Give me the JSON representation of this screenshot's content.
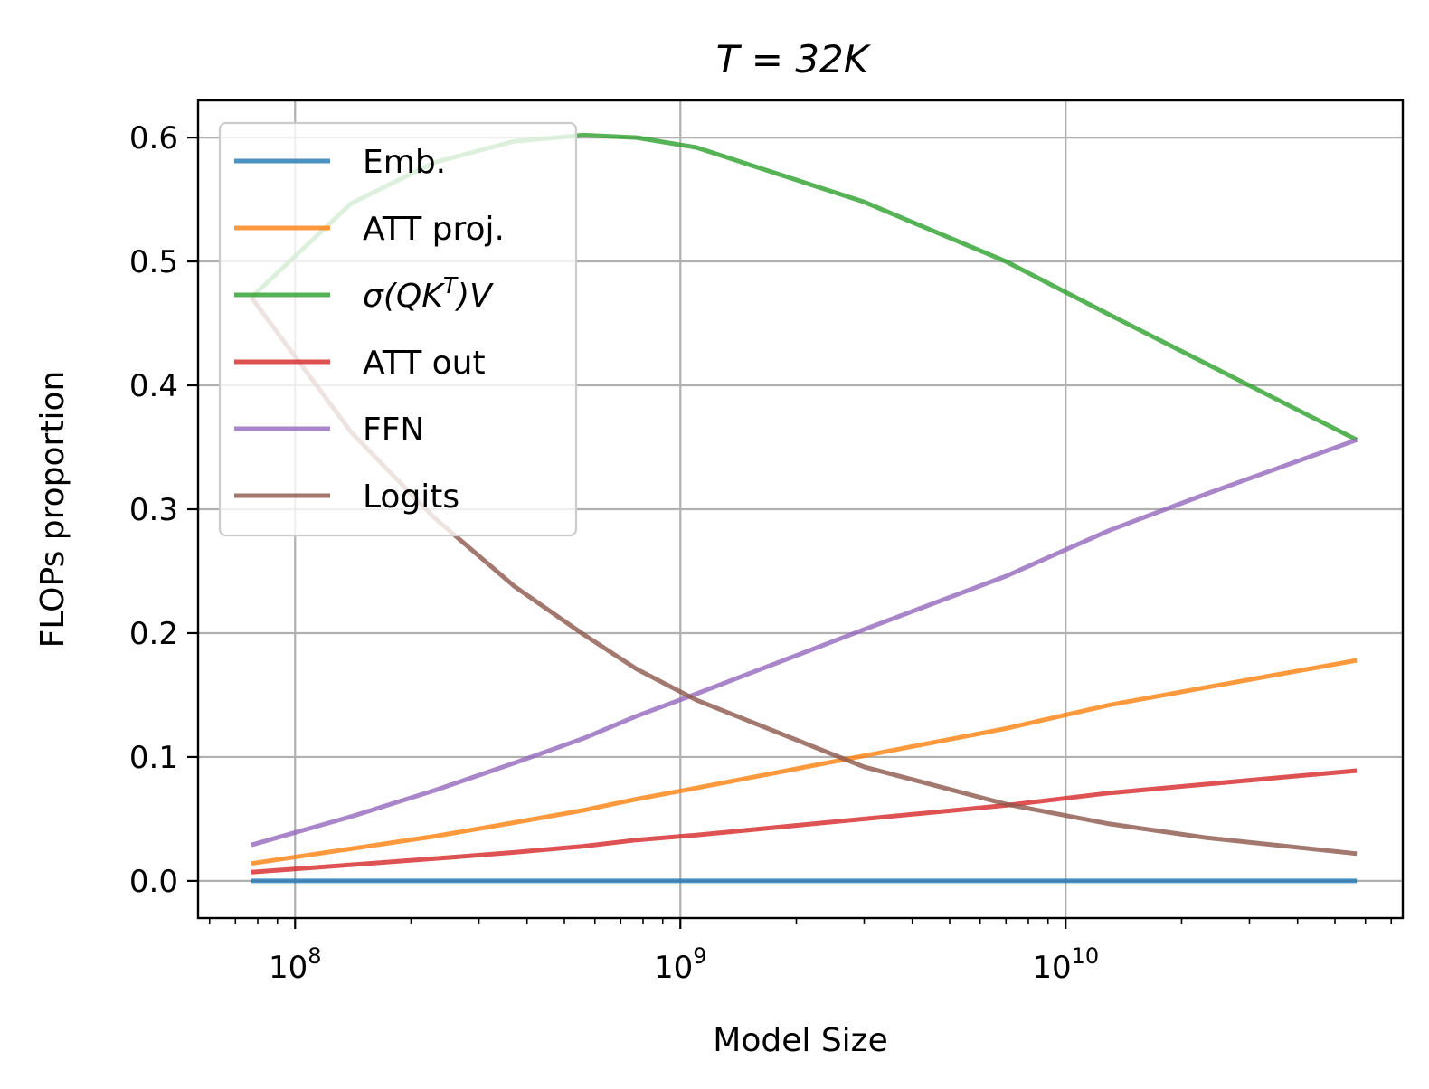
{
  "chart_data": {
    "type": "line",
    "title": "T = 32K",
    "xlabel": "Model Size",
    "ylabel": "FLOPs proportion",
    "x_scale": "log",
    "xlim": [
      56000000,
      75000000000
    ],
    "ylim": [
      -0.03,
      0.63
    ],
    "x_ticks": [
      100000000,
      1000000000,
      10000000000
    ],
    "x_tick_labels": [
      {
        "base": "10",
        "exp": "8"
      },
      {
        "base": "10",
        "exp": "9"
      },
      {
        "base": "10",
        "exp": "10"
      }
    ],
    "y_ticks": [
      0.0,
      0.1,
      0.2,
      0.3,
      0.4,
      0.5,
      0.6
    ],
    "y_tick_labels": [
      "0.0",
      "0.1",
      "0.2",
      "0.3",
      "0.4",
      "0.5",
      "0.6"
    ],
    "grid": true,
    "legend": {
      "position": "top-left"
    },
    "series": [
      {
        "name": "Emb.",
        "color": "#1f77b4",
        "x": [
          77000000,
          1000000000,
          10000000000,
          57000000000
        ],
        "y": [
          0.0,
          0.0,
          0.0,
          0.0
        ]
      },
      {
        "name": "ATT proj.",
        "color": "#ff7f0e",
        "x": [
          77000000,
          140000000,
          230000000,
          370000000,
          560000000,
          770000000,
          1100000000,
          3000000000,
          7000000000,
          13000000000,
          23000000000,
          57000000000
        ],
        "y": [
          0.014,
          0.026,
          0.036,
          0.047,
          0.057,
          0.066,
          0.075,
          0.101,
          0.123,
          0.142,
          0.156,
          0.178
        ]
      },
      {
        "name": "σ(QKᵀ)V",
        "name_parts": {
          "pre": "σ(",
          "q": "QK",
          "sup": "T",
          "post": ")V"
        },
        "color": "#2ca02c",
        "x": [
          77000000,
          140000000,
          230000000,
          370000000,
          560000000,
          770000000,
          1100000000,
          3000000000,
          7000000000,
          13000000000,
          23000000000,
          57000000000
        ],
        "y": [
          0.471,
          0.547,
          0.58,
          0.597,
          0.602,
          0.6,
          0.592,
          0.548,
          0.5,
          0.457,
          0.418,
          0.356
        ]
      },
      {
        "name": "ATT out",
        "color": "#d62728",
        "x": [
          77000000,
          140000000,
          230000000,
          370000000,
          560000000,
          770000000,
          1100000000,
          3000000000,
          7000000000,
          13000000000,
          23000000000,
          57000000000
        ],
        "y": [
          0.007,
          0.013,
          0.018,
          0.023,
          0.028,
          0.033,
          0.037,
          0.05,
          0.061,
          0.071,
          0.078,
          0.089
        ]
      },
      {
        "name": "FFN",
        "color": "#9467bd",
        "x": [
          77000000,
          140000000,
          230000000,
          370000000,
          560000000,
          770000000,
          1100000000,
          3000000000,
          7000000000,
          13000000000,
          23000000000,
          57000000000
        ],
        "y": [
          0.029,
          0.052,
          0.073,
          0.095,
          0.115,
          0.133,
          0.151,
          0.203,
          0.246,
          0.283,
          0.312,
          0.356
        ]
      },
      {
        "name": "Logits",
        "color": "#8c564b",
        "x": [
          77000000,
          140000000,
          230000000,
          370000000,
          560000000,
          770000000,
          1100000000,
          3000000000,
          7000000000,
          13000000000,
          23000000000,
          57000000000
        ],
        "y": [
          0.471,
          0.362,
          0.293,
          0.238,
          0.199,
          0.171,
          0.146,
          0.092,
          0.062,
          0.046,
          0.035,
          0.022
        ]
      }
    ]
  }
}
